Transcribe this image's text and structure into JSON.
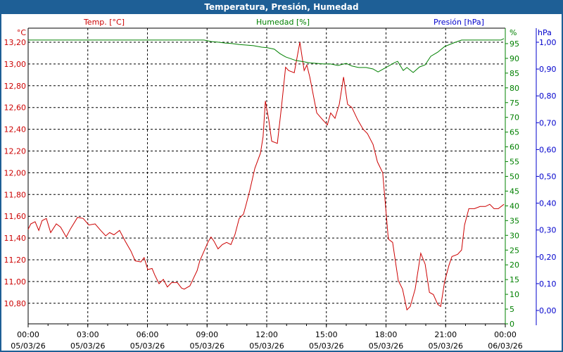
{
  "title": "Temperatura, Presión, Humedad",
  "colors": {
    "temp": "#cc0000",
    "hum": "#008000",
    "pres": "#0000cc",
    "titlebar": "#1e5f96"
  },
  "chart_data": {
    "type": "line",
    "title": "Temperatura, Presión, Humedad",
    "grid": true,
    "x_ticks": [
      {
        "time": "00:00",
        "date": "05/03/26"
      },
      {
        "time": "03:00",
        "date": "05/03/26"
      },
      {
        "time": "06:00",
        "date": "05/03/26"
      },
      {
        "time": "09:00",
        "date": "05/03/26"
      },
      {
        "time": "12:00",
        "date": "05/03/26"
      },
      {
        "time": "15:00",
        "date": "05/03/26"
      },
      {
        "time": "18:00",
        "date": "05/03/26"
      },
      {
        "time": "21:00",
        "date": "05/03/26"
      },
      {
        "time": "00:00",
        "date": "06/03/26"
      }
    ],
    "xlim": [
      "05/03/26 00:00",
      "06/03/26 00:00"
    ],
    "axes": {
      "temp": {
        "label": "Temp. [°C]",
        "unit": "°C",
        "ylim": [
          10.67,
          13.33
        ],
        "ticks": [
          "10,80",
          "11,00",
          "11,20",
          "11,40",
          "11,60",
          "11,80",
          "12,00",
          "12,20",
          "12,40",
          "12,60",
          "12,80",
          "13,00",
          "13,20"
        ]
      },
      "hum": {
        "label": "Humedad [%]",
        "unit": "%",
        "ylim": [
          0,
          100
        ],
        "ticks": [
          "0",
          "5",
          "10",
          "15",
          "20",
          "25",
          "30",
          "35",
          "40",
          "45",
          "50",
          "55",
          "60",
          "65",
          "70",
          "75",
          "80",
          "85",
          "90",
          "95"
        ]
      },
      "pres": {
        "label": "Presión [hPa]",
        "unit": "hPa",
        "ylim": [
          -0.05,
          1.05
        ],
        "ticks": [
          "0,00",
          "0,10",
          "0,20",
          "0,30",
          "0,40",
          "0,50",
          "0,60",
          "0,70",
          "0,80",
          "0,90",
          "1,00"
        ]
      }
    },
    "series": [
      {
        "name": "Temp. [°C]",
        "axis": "temp",
        "points": [
          [
            "00:00",
            11.48
          ],
          [
            "00:08",
            11.53
          ],
          [
            "00:21",
            11.55
          ],
          [
            "00:32",
            11.47
          ],
          [
            "00:42",
            11.56
          ],
          [
            "00:55",
            11.58
          ],
          [
            "01:08",
            11.45
          ],
          [
            "01:25",
            11.53
          ],
          [
            "01:38",
            11.5
          ],
          [
            "01:55",
            11.41
          ],
          [
            "02:07",
            11.48
          ],
          [
            "02:29",
            11.59
          ],
          [
            "02:46",
            11.58
          ],
          [
            "03:03",
            11.52
          ],
          [
            "03:22",
            11.53
          ],
          [
            "03:39",
            11.47
          ],
          [
            "03:54",
            11.42
          ],
          [
            "04:06",
            11.45
          ],
          [
            "04:19",
            11.43
          ],
          [
            "04:36",
            11.47
          ],
          [
            "04:53",
            11.37
          ],
          [
            "05:10",
            11.28
          ],
          [
            "05:23",
            11.19
          ],
          [
            "05:40",
            11.18
          ],
          [
            "05:50",
            11.22
          ],
          [
            "06:01",
            11.11
          ],
          [
            "06:14",
            11.12
          ],
          [
            "06:22",
            11.06
          ],
          [
            "06:35",
            10.98
          ],
          [
            "06:48",
            11.02
          ],
          [
            "07:00",
            10.95
          ],
          [
            "07:13",
            10.99
          ],
          [
            "07:30",
            10.99
          ],
          [
            "07:43",
            10.94
          ],
          [
            "07:51",
            10.93
          ],
          [
            "08:08",
            10.96
          ],
          [
            "08:19",
            11.03
          ],
          [
            "08:30",
            11.1
          ],
          [
            "08:38",
            11.19
          ],
          [
            "08:51",
            11.28
          ],
          [
            "09:04",
            11.37
          ],
          [
            "09:12",
            11.41
          ],
          [
            "09:21",
            11.37
          ],
          [
            "09:33",
            11.3
          ],
          [
            "09:46",
            11.34
          ],
          [
            "09:59",
            11.36
          ],
          [
            "10:12",
            11.34
          ],
          [
            "10:24",
            11.43
          ],
          [
            "10:37",
            11.58
          ],
          [
            "10:50",
            11.62
          ],
          [
            "10:58",
            11.71
          ],
          [
            "11:09",
            11.84
          ],
          [
            "11:24",
            12.04
          ],
          [
            "11:41",
            12.18
          ],
          [
            "11:49",
            12.33
          ],
          [
            "11:56",
            12.66
          ],
          [
            "12:06",
            12.49
          ],
          [
            "12:15",
            12.29
          ],
          [
            "12:32",
            12.27
          ],
          [
            "12:45",
            12.62
          ],
          [
            "12:57",
            12.97
          ],
          [
            "13:06",
            12.94
          ],
          [
            "13:23",
            12.92
          ],
          [
            "13:40",
            13.2
          ],
          [
            "13:53",
            12.94
          ],
          [
            "14:01",
            12.99
          ],
          [
            "14:10",
            12.88
          ],
          [
            "14:31",
            12.55
          ],
          [
            "14:48",
            12.49
          ],
          [
            "15:03",
            12.44
          ],
          [
            "15:13",
            12.55
          ],
          [
            "15:26",
            12.5
          ],
          [
            "15:39",
            12.63
          ],
          [
            "15:52",
            12.88
          ],
          [
            "16:04",
            12.63
          ],
          [
            "16:17",
            12.6
          ],
          [
            "16:34",
            12.49
          ],
          [
            "16:51",
            12.4
          ],
          [
            "17:04",
            12.36
          ],
          [
            "17:21",
            12.26
          ],
          [
            "17:34",
            12.1
          ],
          [
            "17:50",
            12.0
          ],
          [
            "18:07",
            11.39
          ],
          [
            "18:20",
            11.36
          ],
          [
            "18:37",
            11.01
          ],
          [
            "18:50",
            10.93
          ],
          [
            "19:03",
            10.74
          ],
          [
            "19:13",
            10.77
          ],
          [
            "19:28",
            10.93
          ],
          [
            "19:45",
            11.26
          ],
          [
            "19:58",
            11.16
          ],
          [
            "20:11",
            10.9
          ],
          [
            "20:23",
            10.88
          ],
          [
            "20:36",
            10.79
          ],
          [
            "20:45",
            10.77
          ],
          [
            "20:57",
            11.0
          ],
          [
            "21:10",
            11.15
          ],
          [
            "21:19",
            11.23
          ],
          [
            "21:36",
            11.25
          ],
          [
            "21:48",
            11.29
          ],
          [
            "21:57",
            11.52
          ],
          [
            "22:10",
            11.67
          ],
          [
            "22:27",
            11.67
          ],
          [
            "22:44",
            11.69
          ],
          [
            "23:00",
            11.69
          ],
          [
            "23:13",
            11.71
          ],
          [
            "23:26",
            11.67
          ],
          [
            "23:39",
            11.67
          ],
          [
            "23:56",
            11.71
          ]
        ]
      },
      {
        "name": "Humedad [%]",
        "axis": "hum",
        "points": [
          [
            "00:00",
            96.2
          ],
          [
            "08:51",
            96.2
          ],
          [
            "09:12",
            95.7
          ],
          [
            "09:33",
            95.5
          ],
          [
            "09:55",
            95.2
          ],
          [
            "10:16",
            95.0
          ],
          [
            "10:37",
            94.7
          ],
          [
            "10:58",
            94.5
          ],
          [
            "11:20",
            94.3
          ],
          [
            "11:45",
            93.8
          ],
          [
            "12:02",
            93.6
          ],
          [
            "12:23",
            93.1
          ],
          [
            "12:40",
            91.6
          ],
          [
            "12:57",
            90.5
          ],
          [
            "13:27",
            89.3
          ],
          [
            "14:10",
            88.5
          ],
          [
            "14:52",
            88.1
          ],
          [
            "15:13",
            88.1
          ],
          [
            "15:35",
            87.6
          ],
          [
            "16:00",
            88.3
          ],
          [
            "16:17",
            87.4
          ],
          [
            "16:38",
            86.9
          ],
          [
            "17:00",
            86.9
          ],
          [
            "17:21",
            86.4
          ],
          [
            "17:36",
            85.4
          ],
          [
            "18:03",
            87.1
          ],
          [
            "18:25",
            88.5
          ],
          [
            "18:35",
            89.0
          ],
          [
            "18:52",
            85.9
          ],
          [
            "19:03",
            86.9
          ],
          [
            "19:22",
            85.2
          ],
          [
            "19:41",
            87.1
          ],
          [
            "19:58",
            87.8
          ],
          [
            "20:15",
            90.7
          ],
          [
            "20:36",
            92.1
          ],
          [
            "20:57",
            94.0
          ],
          [
            "21:23",
            95.2
          ],
          [
            "21:48",
            96.2
          ],
          [
            "23:47",
            96.2
          ],
          [
            "23:56",
            96.7
          ]
        ]
      }
    ]
  }
}
